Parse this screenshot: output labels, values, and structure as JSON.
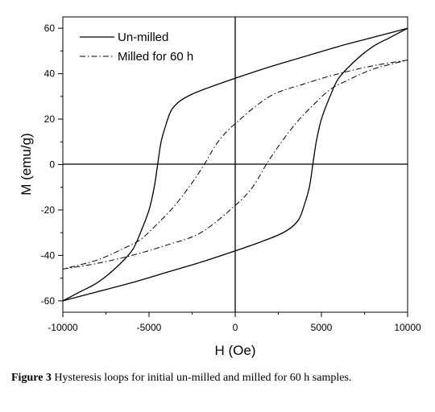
{
  "chart_data": {
    "type": "line",
    "xlabel": "H (Oe)",
    "ylabel": "M (emu/g)",
    "xlim": [
      -10000,
      10000
    ],
    "ylim": [
      -65,
      65
    ],
    "xticks": [
      -10000,
      -5000,
      0,
      5000,
      10000
    ],
    "yticks": [
      -60,
      -40,
      -20,
      0,
      20,
      40,
      60
    ],
    "grid": false,
    "legend_placement": "top-left",
    "series": [
      {
        "name": "Un-milled",
        "line_style": "solid",
        "coercivity": 4500,
        "remanence": 38,
        "branches": {
          "descending": [
            [
              10000,
              60
            ],
            [
              8000,
              56
            ],
            [
              6000,
              52
            ],
            [
              4000,
              47.5
            ],
            [
              2000,
              43
            ],
            [
              0,
              38
            ],
            [
              -1500,
              34
            ],
            [
              -2500,
              31
            ],
            [
              -3200,
              28
            ],
            [
              -3700,
              24
            ],
            [
              -4000,
              18
            ],
            [
              -4300,
              10
            ],
            [
              -4500,
              0
            ],
            [
              -4700,
              -10
            ],
            [
              -5000,
              -20
            ],
            [
              -5500,
              -30
            ],
            [
              -6000,
              -38
            ],
            [
              -7000,
              -46
            ],
            [
              -8000,
              -52
            ],
            [
              -9000,
              -56
            ],
            [
              -10000,
              -60
            ]
          ],
          "ascending": [
            [
              -10000,
              -60
            ],
            [
              -8000,
              -56
            ],
            [
              -6000,
              -52
            ],
            [
              -4000,
              -47.5
            ],
            [
              -2000,
              -43
            ],
            [
              0,
              -38
            ],
            [
              1500,
              -34
            ],
            [
              2500,
              -31
            ],
            [
              3200,
              -28
            ],
            [
              3700,
              -24
            ],
            [
              4000,
              -18
            ],
            [
              4300,
              -10
            ],
            [
              4500,
              0
            ],
            [
              4700,
              10
            ],
            [
              5000,
              20
            ],
            [
              5500,
              30
            ],
            [
              6000,
              38
            ],
            [
              7000,
              46
            ],
            [
              8000,
              52
            ],
            [
              9000,
              56
            ],
            [
              10000,
              60
            ]
          ]
        }
      },
      {
        "name": "Milled for 60 h",
        "line_style": "dash-dot",
        "coercivity": 1800,
        "remanence": 18,
        "branches": {
          "descending": [
            [
              10000,
              46
            ],
            [
              8000,
              43.5
            ],
            [
              6000,
              40
            ],
            [
              4000,
              35.5
            ],
            [
              2000,
              30
            ],
            [
              0,
              18
            ],
            [
              -1000,
              10
            ],
            [
              -1800,
              0
            ],
            [
              -2500,
              -8
            ],
            [
              -3500,
              -18
            ],
            [
              -4500,
              -26
            ],
            [
              -5500,
              -33
            ],
            [
              -6500,
              -37
            ],
            [
              -8000,
              -42
            ],
            [
              -10000,
              -46
            ]
          ],
          "ascending": [
            [
              -10000,
              -46
            ],
            [
              -8000,
              -43.5
            ],
            [
              -6000,
              -40
            ],
            [
              -4000,
              -35.5
            ],
            [
              -2000,
              -30
            ],
            [
              0,
              -18
            ],
            [
              1000,
              -10
            ],
            [
              1800,
              0
            ],
            [
              2500,
              8
            ],
            [
              3500,
              18
            ],
            [
              4500,
              26
            ],
            [
              5500,
              33
            ],
            [
              6500,
              37
            ],
            [
              8000,
              42
            ],
            [
              10000,
              46
            ]
          ]
        }
      }
    ]
  },
  "caption": {
    "label": "Figure 3",
    "text": " Hysteresis loops for initial un-milled and milled for 60 h samples."
  }
}
